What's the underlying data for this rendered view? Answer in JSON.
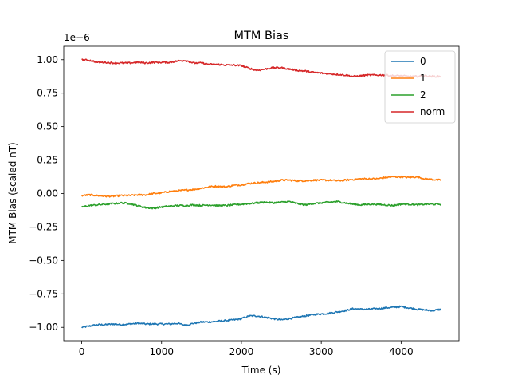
{
  "chart_data": {
    "type": "line",
    "title": "MTM Bias",
    "xlabel": "Time (s)",
    "ylabel": "MTM Bias (scaled nT)",
    "y_offset_label": "1e−6",
    "xlim": [
      -225,
      4725
    ],
    "ylim": [
      -1.1,
      1.1
    ],
    "y_scale": 1e-06,
    "x_ticks": [
      0,
      1000,
      2000,
      3000,
      4000
    ],
    "x_tick_labels": [
      "0",
      "1000",
      "2000",
      "3000",
      "4000"
    ],
    "y_ticks": [
      -1.0,
      -0.75,
      -0.5,
      -0.25,
      0.0,
      0.25,
      0.5,
      0.75,
      1.0
    ],
    "y_tick_labels": [
      "−1.00",
      "−0.75",
      "−0.50",
      "−0.25",
      "0.00",
      "0.25",
      "0.50",
      "0.75",
      "1.00"
    ],
    "grid": false,
    "legend_position": "top-right",
    "series": [
      {
        "name": "0",
        "color": "#1f77b4",
        "x": [
          0,
          100,
          200,
          300,
          400,
          500,
          600,
          700,
          800,
          900,
          1000,
          1100,
          1200,
          1300,
          1400,
          1500,
          1600,
          1700,
          1800,
          1900,
          2000,
          2100,
          2200,
          2300,
          2400,
          2500,
          2600,
          2700,
          2800,
          2900,
          3000,
          3100,
          3200,
          3300,
          3400,
          3500,
          3600,
          3700,
          3800,
          3900,
          4000,
          4100,
          4200,
          4300,
          4400,
          4500
        ],
        "y": [
          -1.0,
          -0.99,
          -0.98,
          -0.98,
          -0.975,
          -0.98,
          -0.975,
          -0.97,
          -0.975,
          -0.975,
          -0.975,
          -0.975,
          -0.97,
          -0.985,
          -0.97,
          -0.96,
          -0.96,
          -0.955,
          -0.95,
          -0.945,
          -0.935,
          -0.915,
          -0.915,
          -0.925,
          -0.935,
          -0.945,
          -0.935,
          -0.925,
          -0.915,
          -0.905,
          -0.9,
          -0.895,
          -0.885,
          -0.875,
          -0.86,
          -0.865,
          -0.865,
          -0.86,
          -0.855,
          -0.85,
          -0.845,
          -0.855,
          -0.865,
          -0.87,
          -0.875,
          -0.865
        ]
      },
      {
        "name": "1",
        "color": "#ff7f0e",
        "x": [
          0,
          100,
          200,
          300,
          400,
          500,
          600,
          700,
          800,
          900,
          1000,
          1100,
          1200,
          1300,
          1400,
          1500,
          1600,
          1700,
          1800,
          1900,
          2000,
          2100,
          2200,
          2300,
          2400,
          2500,
          2600,
          2700,
          2800,
          2900,
          3000,
          3100,
          3200,
          3300,
          3400,
          3500,
          3600,
          3700,
          3800,
          3900,
          4000,
          4100,
          4200,
          4300,
          4400,
          4500
        ],
        "y": [
          -0.015,
          -0.01,
          -0.015,
          -0.02,
          -0.02,
          -0.015,
          -0.015,
          -0.01,
          -0.01,
          0.0,
          0.005,
          0.015,
          0.02,
          0.025,
          0.03,
          0.04,
          0.05,
          0.055,
          0.05,
          0.06,
          0.065,
          0.075,
          0.08,
          0.085,
          0.09,
          0.1,
          0.1,
          0.095,
          0.095,
          0.1,
          0.1,
          0.1,
          0.095,
          0.1,
          0.105,
          0.11,
          0.11,
          0.11,
          0.12,
          0.125,
          0.125,
          0.12,
          0.125,
          0.11,
          0.105,
          0.1
        ]
      },
      {
        "name": "2",
        "color": "#2ca02c",
        "x": [
          0,
          100,
          200,
          300,
          400,
          500,
          600,
          700,
          800,
          900,
          1000,
          1100,
          1200,
          1300,
          1400,
          1500,
          1600,
          1700,
          1800,
          1900,
          2000,
          2100,
          2200,
          2300,
          2400,
          2500,
          2600,
          2700,
          2800,
          2900,
          3000,
          3100,
          3200,
          3300,
          3400,
          3500,
          3600,
          3700,
          3800,
          3900,
          4000,
          4100,
          4200,
          4300,
          4400,
          4500
        ],
        "y": [
          -0.1,
          -0.09,
          -0.085,
          -0.08,
          -0.075,
          -0.07,
          -0.075,
          -0.09,
          -0.105,
          -0.11,
          -0.1,
          -0.095,
          -0.09,
          -0.09,
          -0.085,
          -0.09,
          -0.085,
          -0.09,
          -0.09,
          -0.085,
          -0.08,
          -0.075,
          -0.07,
          -0.065,
          -0.07,
          -0.065,
          -0.06,
          -0.075,
          -0.085,
          -0.075,
          -0.07,
          -0.065,
          -0.06,
          -0.07,
          -0.08,
          -0.085,
          -0.08,
          -0.08,
          -0.085,
          -0.09,
          -0.08,
          -0.08,
          -0.085,
          -0.08,
          -0.08,
          -0.08
        ]
      },
      {
        "name": "norm",
        "color": "#d62728",
        "x": [
          0,
          100,
          200,
          300,
          400,
          500,
          600,
          700,
          800,
          900,
          1000,
          1100,
          1200,
          1300,
          1400,
          1500,
          1600,
          1700,
          1800,
          1900,
          2000,
          2100,
          2200,
          2300,
          2400,
          2500,
          2600,
          2700,
          2800,
          2900,
          3000,
          3100,
          3200,
          3300,
          3400,
          3500,
          3600,
          3700,
          3800,
          3900,
          4000,
          4100,
          4200,
          4300,
          4400,
          4500
        ],
        "y": [
          1.0,
          0.995,
          0.98,
          0.98,
          0.975,
          0.975,
          0.975,
          0.98,
          0.975,
          0.98,
          0.98,
          0.98,
          0.99,
          0.995,
          0.975,
          0.975,
          0.965,
          0.965,
          0.96,
          0.96,
          0.955,
          0.935,
          0.92,
          0.93,
          0.94,
          0.94,
          0.93,
          0.92,
          0.915,
          0.905,
          0.9,
          0.895,
          0.89,
          0.885,
          0.875,
          0.88,
          0.885,
          0.885,
          0.885,
          0.88,
          0.88,
          0.875,
          0.875,
          0.88,
          0.875,
          0.875
        ]
      }
    ]
  }
}
